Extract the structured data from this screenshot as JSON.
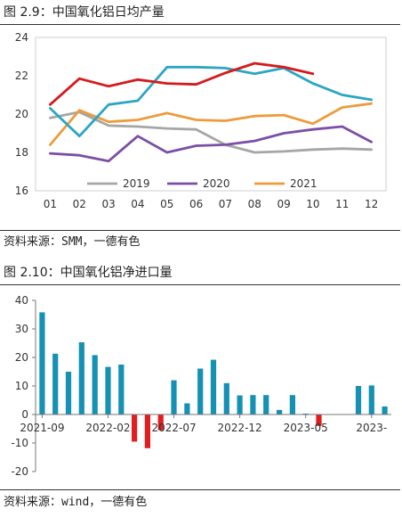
{
  "figures": [
    {
      "title": "图 2.9：中国氧化铝日均产量",
      "source": "资料来源：SMM，一德有色"
    },
    {
      "title": "图 2.10：中国氧化铝净进口量",
      "source": "资料来源：wind，一德有色"
    }
  ],
  "chart_data": [
    {
      "type": "line",
      "title": "",
      "xlabel": "",
      "ylabel": "",
      "categories": [
        "01",
        "02",
        "03",
        "04",
        "05",
        "06",
        "07",
        "08",
        "09",
        "10",
        "11",
        "12"
      ],
      "y_ticks": [
        16,
        18,
        20,
        22,
        24
      ],
      "ylim": [
        16,
        24
      ],
      "grid": false,
      "legend_position": "bottom",
      "series": [
        {
          "name": "2019",
          "color": "#a6a6a6",
          "values": [
            19.8,
            20.1,
            19.4,
            19.35,
            19.25,
            19.2,
            18.4,
            18.0,
            18.05,
            18.15,
            18.2,
            18.15
          ]
        },
        {
          "name": "2020",
          "color": "#7b4fa6",
          "values": [
            17.95,
            17.85,
            17.55,
            18.85,
            18.0,
            18.35,
            18.4,
            18.6,
            19.0,
            19.2,
            19.35,
            18.55
          ]
        },
        {
          "name": "2021",
          "color": "#ed9b3d",
          "values": [
            18.4,
            20.2,
            19.6,
            19.7,
            20.05,
            19.7,
            19.65,
            19.9,
            19.95,
            19.5,
            20.35,
            20.55
          ]
        },
        {
          "name": "",
          "color": "#2aa6c4",
          "values": [
            20.3,
            18.85,
            20.5,
            20.7,
            22.45,
            22.45,
            22.4,
            22.1,
            22.4,
            21.6,
            21.0,
            20.75
          ]
        },
        {
          "name": "",
          "color": "#d7191c",
          "values": [
            20.5,
            21.85,
            21.45,
            21.8,
            21.6,
            21.55,
            22.15,
            22.65,
            22.45,
            22.1,
            null,
            null
          ]
        }
      ]
    },
    {
      "type": "bar",
      "title": "",
      "xlabel": "",
      "ylabel": "",
      "positive_color": "#1591b4",
      "negative_color": "#e01e1e",
      "y_ticks": [
        -20,
        -10,
        0,
        10,
        20,
        30,
        40
      ],
      "ylim": [
        -20,
        40
      ],
      "grid": false,
      "x_tick_labels": [
        "2021-09",
        "2022-02",
        "2022-07",
        "2022-12",
        "2023-05",
        "2023-"
      ],
      "x_tick_label_indices": [
        0,
        5,
        10,
        15,
        20,
        25
      ],
      "categories": [
        "2021-09",
        "2021-10",
        "2021-11",
        "2021-12",
        "2022-01",
        "2022-02",
        "2022-03",
        "2022-04",
        "2022-05",
        "2022-06",
        "2022-07",
        "2022-08",
        "2022-09",
        "2022-10",
        "2022-11",
        "2022-12",
        "2023-01",
        "2023-02",
        "2023-03",
        "2023-04",
        "2023-05",
        "2023-06",
        "2023-07",
        "2023-08",
        "2023-09",
        "2023-10",
        "2023-11"
      ],
      "values": [
        35.8,
        21.3,
        15.0,
        25.3,
        20.8,
        16.7,
        17.5,
        -9.5,
        -11.8,
        -5.5,
        12.0,
        3.9,
        16.1,
        19.2,
        11.0,
        6.7,
        6.8,
        6.8,
        1.6,
        6.8,
        0.3,
        -4.0,
        0.0,
        0.0,
        10.0,
        10.2,
        2.8
      ]
    }
  ]
}
